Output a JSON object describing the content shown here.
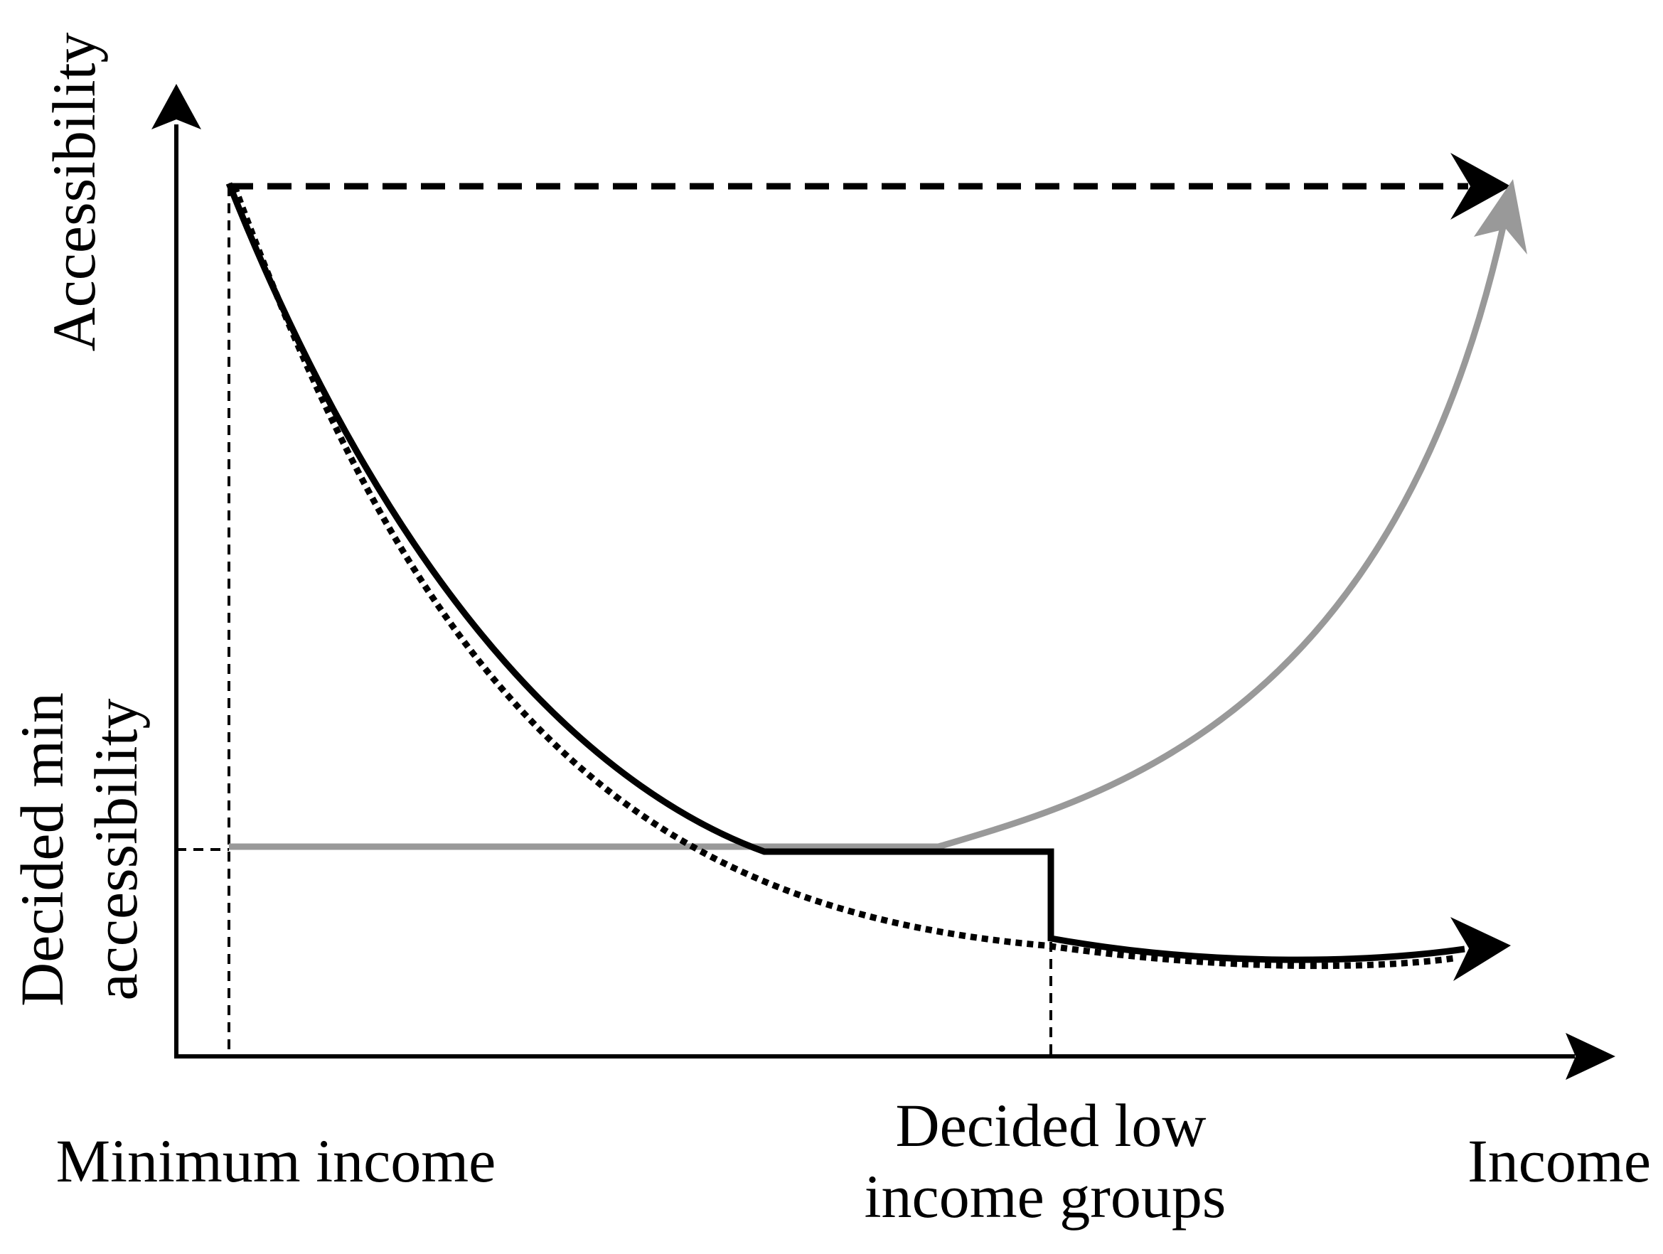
{
  "labels": {
    "y_axis": "Accessibility",
    "y_threshold_line1": "Decided min",
    "y_threshold_line2": "accessibility",
    "x_min": "Minimum income",
    "x_threshold_line1": "Decided low",
    "x_threshold_line2": "income groups",
    "x_axis": "Income"
  },
  "colors": {
    "ink": "#000000",
    "gray_curve": "#999999",
    "background": "#ffffff"
  },
  "curves": [
    {
      "id": "constant-max",
      "style": "black-dashed",
      "shape": "horizontal line at maximum accessibility"
    },
    {
      "id": "decreasing",
      "style": "black-dotted",
      "shape": "accessibility decreasing with income"
    },
    {
      "id": "floored-then-dropped",
      "style": "black-solid",
      "shape": "decreasing to the minimum, flat across low income groups, then dropping"
    },
    {
      "id": "floored-then-rising",
      "style": "gray-solid",
      "shape": "flat at the minimum, then rising with income"
    }
  ]
}
